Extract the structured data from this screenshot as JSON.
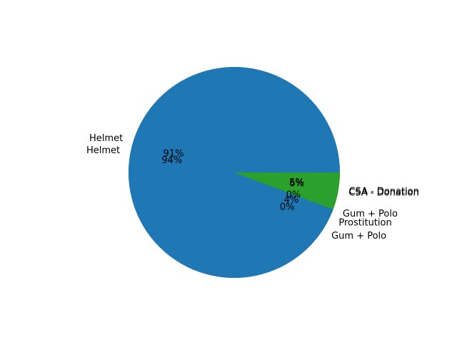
{
  "chart_data": {
    "type": "pie",
    "layers": [
      {
        "slices": [
          {
            "label": "Helmet",
            "value": 90.6,
            "pct_label": "91%",
            "color": "#1f77b4"
          },
          {
            "label": "Gum + Polo",
            "value": 0.3,
            "pct_label": "0%",
            "color": "#1f77b4"
          },
          {
            "label": "Prostitution",
            "value": 3.8,
            "pct_label": "4%",
            "color": "#2ca02c"
          },
          {
            "label": "CSA - Donation",
            "value": 5.3,
            "pct_label": "5%",
            "color": "#ff7f0e"
          }
        ]
      },
      {
        "slices": [
          {
            "label": "Helmet",
            "value": 94.0,
            "pct_label": "94%",
            "color": "#1f77b4"
          },
          {
            "label": "Gum + Polo",
            "value": 0.3,
            "pct_label": "0%",
            "color": "#1f77b4"
          },
          {
            "label": "CSA - Donation",
            "value": 5.7,
            "pct_label": "6%",
            "color": "#2ca02c"
          }
        ]
      }
    ]
  }
}
